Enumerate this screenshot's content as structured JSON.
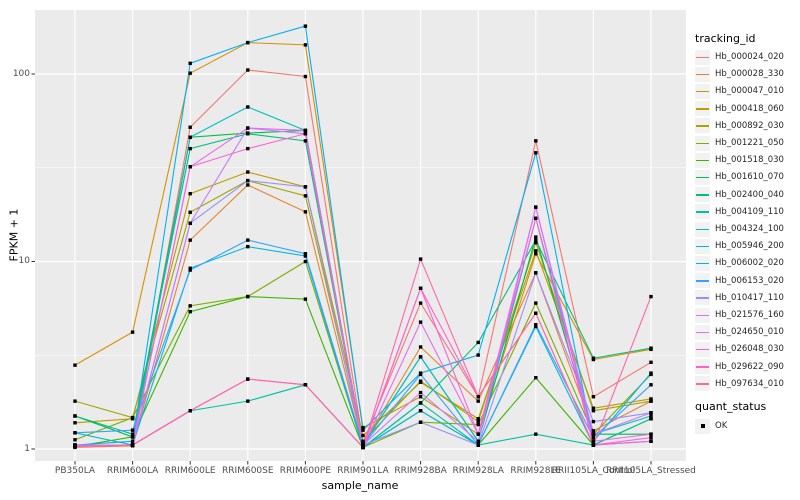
{
  "figure": {
    "bg": "#FFFFFF",
    "panel_bg": "#EBEBEB",
    "grid_color": "#FFFFFF",
    "tick_color": "#333333",
    "axis_text_color": "#4D4D4D",
    "point_color": "#000000",
    "legend_key_bg": "#F2F2F2"
  },
  "legend": {
    "title": "tracking_id"
  },
  "legend2": {
    "title": "quant_status",
    "items": [
      {
        "label": "OK"
      }
    ]
  },
  "chart_data": {
    "type": "line",
    "title": "",
    "xlabel": "sample_name",
    "ylabel": "FPKM + 1",
    "y_scale": "log10",
    "ylim": [
      0.85,
      220
    ],
    "y_ticks": [
      1,
      10,
      100
    ],
    "y_tick_labels": [
      "1",
      "10",
      "100"
    ],
    "y_minor_ticks": [
      3.1623,
      31.623
    ],
    "grid": true,
    "legend_position": "right",
    "point_shape": "filled-square",
    "categories": [
      "PB350LA",
      "RRIM600LA",
      "RRIM600LE",
      "RRIM600SE",
      "RRIM600PE",
      "RRIM901LA",
      "RRIM928BA",
      "RRIM928LA",
      "RRIM928LE",
      "RRII105LA_Control",
      "RRII105LA_Stressed"
    ],
    "series": [
      {
        "name": "Hb_000024_020",
        "color": "#F8766D",
        "values": [
          1.05,
          1.05,
          52,
          105,
          97,
          1.08,
          6.0,
          1.9,
          44,
          1.9,
          2.9
        ]
      },
      {
        "name": "Hb_000028_330",
        "color": "#EA8331",
        "values": [
          1.02,
          1.04,
          13,
          25.6,
          18.4,
          1.05,
          3.5,
          1.8,
          8.7,
          1.25,
          1.8
        ]
      },
      {
        "name": "Hb_000047_010",
        "color": "#D89000",
        "values": [
          2.8,
          4.2,
          101,
          147,
          143,
          1.3,
          1.9,
          1.2,
          11.0,
          3.0,
          3.4
        ]
      },
      {
        "name": "Hb_000418_060",
        "color": "#C09B00",
        "values": [
          1.38,
          1.45,
          23,
          30,
          25,
          1.18,
          2.27,
          1.45,
          11.4,
          1.65,
          1.85
        ]
      },
      {
        "name": "Hb_000892_030",
        "color": "#A3A500",
        "values": [
          1.8,
          1.47,
          18.3,
          27,
          22.4,
          1.1,
          2.3,
          1.4,
          12.6,
          1.6,
          1.8
        ]
      },
      {
        "name": "Hb_001221_050",
        "color": "#7CAE00",
        "values": [
          1.12,
          1.47,
          5.8,
          6.5,
          10.0,
          1.02,
          1.39,
          1.35,
          6.0,
          1.2,
          2.5
        ]
      },
      {
        "name": "Hb_001518_030",
        "color": "#39B600",
        "values": [
          1.03,
          1.16,
          5.4,
          6.5,
          6.3,
          1.02,
          1.6,
          1.05,
          2.4,
          1.05,
          1.45
        ]
      },
      {
        "name": "Hb_001610_070",
        "color": "#00BB4E",
        "values": [
          1.5,
          1.16,
          46,
          48.4,
          50,
          1.05,
          3.1,
          1.1,
          13.5,
          1.2,
          1.2
        ]
      },
      {
        "name": "Hb_002400_040",
        "color": "#00BF7D",
        "values": [
          1.5,
          1.2,
          40,
          48,
          44,
          1.02,
          1.76,
          3.7,
          13.0,
          3.05,
          3.45
        ]
      },
      {
        "name": "Hb_004109_110",
        "color": "#00C1A3",
        "values": [
          1.03,
          1.05,
          1.6,
          1.8,
          2.2,
          1.02,
          1.76,
          1.05,
          1.2,
          1.05,
          1.45
        ]
      },
      {
        "name": "Hb_004324_100",
        "color": "#00BFC4",
        "values": [
          1.22,
          1.05,
          46,
          66.7,
          50,
          1.05,
          3.1,
          1.1,
          17,
          1.2,
          1.5
        ]
      },
      {
        "name": "Hb_005946_200",
        "color": "#00BAE0",
        "values": [
          1.03,
          1.05,
          9.2,
          12,
          10.7,
          1.02,
          1.6,
          1.05,
          4.5,
          1.05,
          1.1
        ]
      },
      {
        "name": "Hb_006002_020",
        "color": "#00B0F6",
        "values": [
          1.05,
          1.1,
          114,
          147,
          180,
          1.26,
          2.54,
          3.17,
          38,
          1.1,
          2.54
        ]
      },
      {
        "name": "Hb_006153_020",
        "color": "#35A2FF",
        "values": [
          1.22,
          1.26,
          9.0,
          13,
          11,
          1.05,
          2.5,
          1.05,
          4.6,
          1.15,
          2.2
        ]
      },
      {
        "name": "Hb_010417_110",
        "color": "#9590FF",
        "values": [
          1.05,
          1.05,
          16,
          27,
          25,
          1.05,
          1.39,
          1.05,
          8.7,
          1.4,
          1.56
        ]
      },
      {
        "name": "Hb_021576_160",
        "color": "#C77CFF",
        "values": [
          1.05,
          1.05,
          16,
          51.5,
          48,
          1.05,
          2.0,
          1.1,
          19.5,
          1.2,
          1.56
        ]
      },
      {
        "name": "Hb_024650_010",
        "color": "#E76BF3",
        "values": [
          1.03,
          1.05,
          32,
          51.5,
          50,
          1.02,
          4.75,
          1.2,
          19.5,
          1.1,
          1.2
        ]
      },
      {
        "name": "Hb_026048_030",
        "color": "#FA62DB",
        "values": [
          1.03,
          1.05,
          32,
          40,
          48,
          1.02,
          7.2,
          1.2,
          17,
          1.05,
          1.15
        ]
      },
      {
        "name": "Hb_029622_090",
        "color": "#FF61CC",
        "values": [
          1.03,
          1.05,
          1.6,
          2.36,
          2.2,
          1.02,
          7.2,
          1.9,
          5.3,
          1.05,
          1.1
        ]
      },
      {
        "name": "Hb_097634_010",
        "color": "#FF67A4",
        "values": [
          1.03,
          1.05,
          1.6,
          2.36,
          2.2,
          1.02,
          10.3,
          1.9,
          5.3,
          1.05,
          6.5
        ]
      }
    ]
  }
}
